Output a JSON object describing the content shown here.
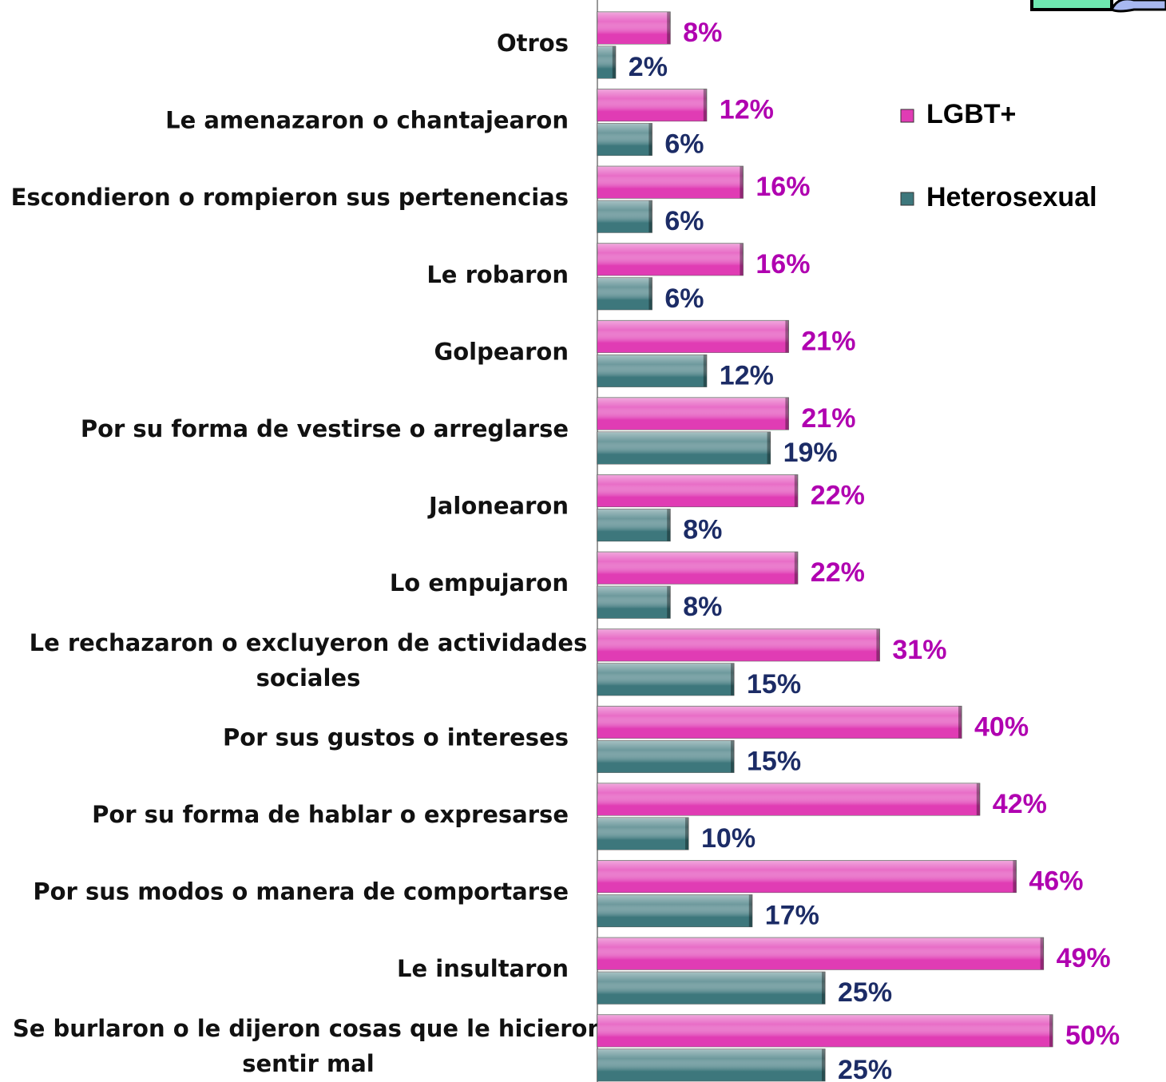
{
  "chart_data": {
    "type": "bar",
    "orientation": "horizontal",
    "categories": [
      "Otros",
      "Le amenazaron o chantajearon",
      "Escondieron o rompieron sus pertenencias",
      "Le robaron",
      "Golpearon",
      "Por su forma de vestirse o arreglarse",
      "Jalonearon",
      "Lo empujaron",
      "Le rechazaron o excluyeron de actividades\nsociales",
      "Por sus gustos o intereses",
      "Por su forma de hablar o expresarse",
      "Por sus modos o manera de comportarse",
      "Le insultaron",
      "Se burlaron o le dijeron cosas que le hicieron\nsentir mal"
    ],
    "series": [
      {
        "name": "LGBT+",
        "color": "#e03cb4",
        "label_color": "#b000b0",
        "values": [
          8,
          12,
          16,
          16,
          21,
          21,
          22,
          22,
          31,
          40,
          42,
          46,
          49,
          50
        ],
        "value_labels": [
          "8%",
          "12%",
          "16%",
          "16%",
          "21%",
          "21%",
          "22%",
          "22%",
          "31%",
          "40%",
          "42%",
          "46%",
          "49%",
          "50%"
        ]
      },
      {
        "name": "Heterosexual",
        "color": "#3d777c",
        "label_color": "#1c2c66",
        "values": [
          2,
          6,
          6,
          6,
          12,
          19,
          8,
          8,
          15,
          15,
          10,
          17,
          25,
          25
        ],
        "value_labels": [
          "2%",
          "6%",
          "6%",
          "6%",
          "12%",
          "19%",
          "8%",
          "8%",
          "15%",
          "15%",
          "10%",
          "17%",
          "25%",
          "25%"
        ]
      }
    ],
    "legend": "right"
  }
}
